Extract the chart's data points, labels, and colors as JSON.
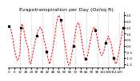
{
  "title": "Evapotranspiration per Day (Oz/sq ft)",
  "line_color": "#ff0000",
  "marker_color": "#000000",
  "background_color": "#ffffff",
  "plot_bg_color": "#ffffff",
  "ylim": [
    -1.8,
    2.8
  ],
  "data_y": [
    1.6,
    1.5,
    1.3,
    1.0,
    0.6,
    0.1,
    -0.3,
    -0.7,
    -1.0,
    -1.2,
    -1.2,
    -0.9,
    -0.5,
    1.5,
    1.8,
    1.6,
    1.3,
    0.9,
    0.5,
    0.2,
    0.0,
    -0.3,
    -1.2,
    -1.5,
    -1.4,
    -1.0,
    -0.6,
    -0.2,
    0.2,
    0.5,
    0.8,
    1.1,
    1.3,
    1.4,
    1.5,
    1.4,
    1.2,
    0.9,
    0.5,
    0.2,
    -0.1,
    -0.5,
    -0.9,
    -1.2,
    -1.5,
    -1.3,
    -0.9,
    -0.5,
    -0.1,
    0.4,
    0.9,
    1.5,
    2.0,
    2.3,
    2.5,
    2.4,
    2.1,
    1.8,
    1.4,
    1.0,
    0.5,
    0.0,
    -0.5,
    -1.0,
    -1.4,
    -1.6,
    -1.5,
    -1.2,
    -0.8,
    -0.4,
    0.0,
    0.5,
    1.0,
    1.4,
    1.7,
    1.9,
    1.8,
    1.5,
    1.0,
    0.5,
    0.0,
    -0.5,
    -0.9,
    -1.1,
    -1.1,
    -0.9,
    -0.6,
    -0.2,
    0.2,
    0.6,
    1.0,
    1.3,
    1.5,
    1.5,
    1.3,
    1.0,
    0.6,
    0.2,
    -0.2,
    -0.5,
    -0.7,
    -0.8,
    -0.7,
    -0.5,
    -0.2,
    0.2,
    0.5,
    0.5,
    0.8,
    0.6,
    0.4,
    0.2,
    -0.2,
    -0.6,
    -1.0,
    -1.3,
    -1.5,
    -1.4,
    -1.1,
    -0.7,
    -0.3,
    0.1,
    0.6,
    1.1,
    1.5
  ],
  "marker_positions": [
    0,
    13,
    30,
    41,
    56,
    70,
    83,
    94,
    105,
    114,
    124
  ],
  "vline_positions": [
    12,
    24,
    36,
    48,
    60,
    72,
    84,
    96,
    108,
    120
  ],
  "yticks": [
    -1.5,
    -1.0,
    -0.5,
    0.0,
    0.5,
    1.0,
    1.5,
    2.0,
    2.5
  ],
  "title_fontsize": 4.5,
  "tick_fontsize": 3.0
}
